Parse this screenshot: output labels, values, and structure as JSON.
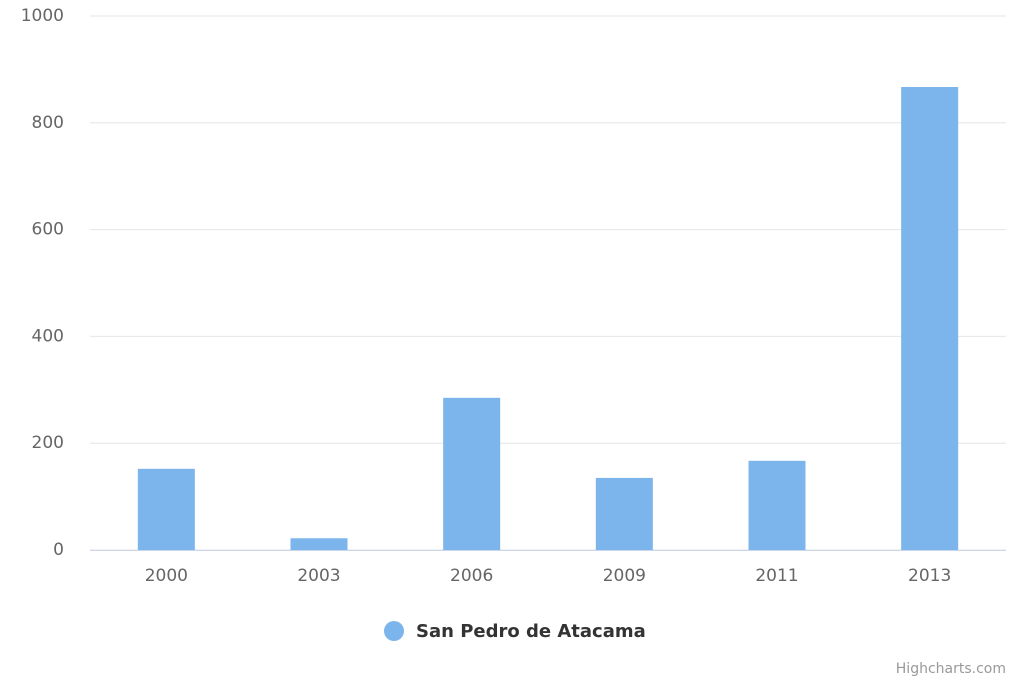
{
  "chart_data": {
    "type": "bar",
    "categories": [
      "2000",
      "2003",
      "2006",
      "2009",
      "2011",
      "2013"
    ],
    "series": [
      {
        "name": "San Pedro de Atacama",
        "color": "#7cb5ec",
        "values": [
          152,
          22,
          285,
          135,
          167,
          867
        ]
      }
    ],
    "ylim": [
      0,
      1000
    ],
    "yticks": [
      0,
      200,
      400,
      600,
      800,
      1000
    ],
    "grid": true,
    "legend": "bottom",
    "credits": "Highcharts.com"
  }
}
